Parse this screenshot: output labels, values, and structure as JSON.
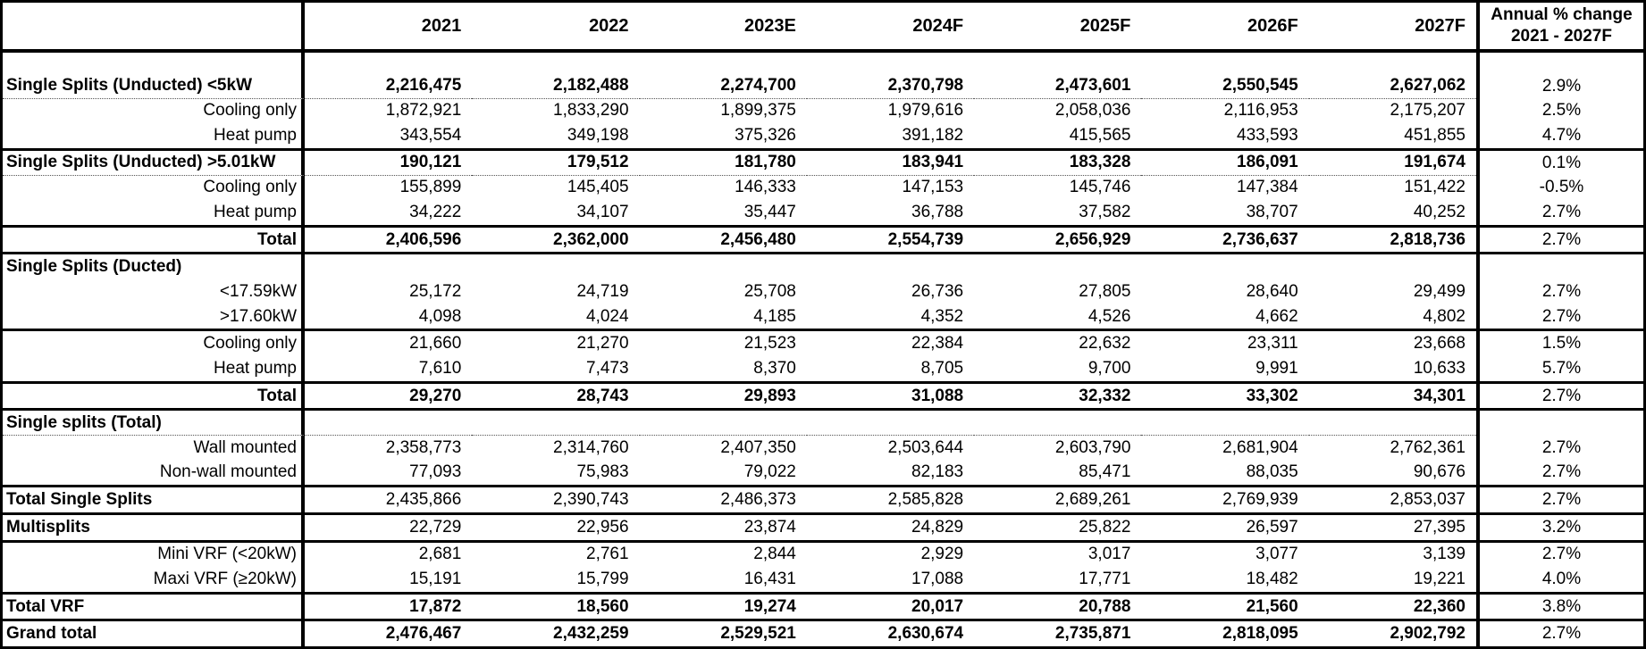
{
  "colors": {
    "background": "#ffffff",
    "text": "#000000",
    "border": "#000000",
    "dotted_line": "#555555"
  },
  "chart_data": {
    "type": "table",
    "title": "",
    "columns": {
      "corner": "",
      "years": [
        "2021",
        "2022",
        "2023E",
        "2024F",
        "2025F",
        "2026F",
        "2027F"
      ],
      "change_header_line1": "Annual % change",
      "change_header_line2": "2021 - 2027F"
    },
    "rows": [
      {
        "label": "",
        "label_align": "left",
        "label_bold": false,
        "values_bold": false,
        "spacer": true,
        "values": [
          "",
          "",
          "",
          "",
          "",
          "",
          ""
        ],
        "change": "",
        "border": "none"
      },
      {
        "label": "Single Splits (Unducted) <5kW",
        "label_align": "left",
        "label_bold": true,
        "values_bold": true,
        "values": [
          "2,216,475",
          "2,182,488",
          "2,274,700",
          "2,370,798",
          "2,473,601",
          "2,550,545",
          "2,627,062"
        ],
        "change": "2.9%",
        "border": "dotted"
      },
      {
        "label": "Cooling only",
        "label_align": "right",
        "label_bold": false,
        "values_bold": false,
        "values": [
          "1,872,921",
          "1,833,290",
          "1,899,375",
          "1,979,616",
          "2,058,036",
          "2,116,953",
          "2,175,207"
        ],
        "change": "2.5%",
        "border": "none"
      },
      {
        "label": "Heat pump",
        "label_align": "right",
        "label_bold": false,
        "values_bold": false,
        "values": [
          "343,554",
          "349,198",
          "375,326",
          "391,182",
          "415,565",
          "433,593",
          "451,855"
        ],
        "change": "4.7%",
        "border": "thick"
      },
      {
        "label": "Single Splits (Unducted) >5.01kW",
        "label_align": "left",
        "label_bold": true,
        "values_bold": true,
        "values": [
          "190,121",
          "179,512",
          "181,780",
          "183,941",
          "183,328",
          "186,091",
          "191,674"
        ],
        "change": "0.1%",
        "border": "dotted"
      },
      {
        "label": "Cooling only",
        "label_align": "right",
        "label_bold": false,
        "values_bold": false,
        "values": [
          "155,899",
          "145,405",
          "146,333",
          "147,153",
          "145,746",
          "147,384",
          "151,422"
        ],
        "change": "-0.5%",
        "border": "none"
      },
      {
        "label": "Heat pump",
        "label_align": "right",
        "label_bold": false,
        "values_bold": false,
        "values": [
          "34,222",
          "34,107",
          "35,447",
          "36,788",
          "37,582",
          "38,707",
          "40,252"
        ],
        "change": "2.7%",
        "border": "thick"
      },
      {
        "label": "Total",
        "label_align": "right",
        "label_bold": true,
        "values_bold": true,
        "values": [
          "2,406,596",
          "2,362,000",
          "2,456,480",
          "2,554,739",
          "2,656,929",
          "2,736,637",
          "2,818,736"
        ],
        "change": "2.7%",
        "border": "thick"
      },
      {
        "label": "Single Splits (Ducted)",
        "label_align": "left",
        "label_bold": true,
        "values_bold": false,
        "values": [
          "",
          "",
          "",
          "",
          "",
          "",
          ""
        ],
        "change": "",
        "border": "none"
      },
      {
        "label": "<17.59kW",
        "label_align": "right",
        "label_bold": false,
        "values_bold": false,
        "values": [
          "25,172",
          "24,719",
          "25,708",
          "26,736",
          "27,805",
          "28,640",
          "29,499"
        ],
        "change": "2.7%",
        "border": "none"
      },
      {
        "label": ">17.60kW",
        "label_align": "right",
        "label_bold": false,
        "values_bold": false,
        "values": [
          "4,098",
          "4,024",
          "4,185",
          "4,352",
          "4,526",
          "4,662",
          "4,802"
        ],
        "change": "2.7%",
        "border": "thick"
      },
      {
        "label": "Cooling only",
        "label_align": "right",
        "label_bold": false,
        "values_bold": false,
        "values": [
          "21,660",
          "21,270",
          "21,523",
          "22,384",
          "22,632",
          "23,311",
          "23,668"
        ],
        "change": "1.5%",
        "border": "none"
      },
      {
        "label": "Heat pump",
        "label_align": "right",
        "label_bold": false,
        "values_bold": false,
        "values": [
          "7,610",
          "7,473",
          "8,370",
          "8,705",
          "9,700",
          "9,991",
          "10,633"
        ],
        "change": "5.7%",
        "border": "thick"
      },
      {
        "label": "Total",
        "label_align": "right",
        "label_bold": true,
        "values_bold": true,
        "values": [
          "29,270",
          "28,743",
          "29,893",
          "31,088",
          "32,332",
          "33,302",
          "34,301"
        ],
        "change": "2.7%",
        "border": "thick"
      },
      {
        "label": "Single splits (Total)",
        "label_align": "left",
        "label_bold": true,
        "values_bold": false,
        "values": [
          "",
          "",
          "",
          "",
          "",
          "",
          ""
        ],
        "change": "",
        "border": "dotted"
      },
      {
        "label": "Wall mounted",
        "label_align": "right",
        "label_bold": false,
        "values_bold": false,
        "values": [
          "2,358,773",
          "2,314,760",
          "2,407,350",
          "2,503,644",
          "2,603,790",
          "2,681,904",
          "2,762,361"
        ],
        "change": "2.7%",
        "border": "none"
      },
      {
        "label": "Non-wall mounted",
        "label_align": "right",
        "label_bold": false,
        "values_bold": false,
        "values": [
          "77,093",
          "75,983",
          "79,022",
          "82,183",
          "85,471",
          "88,035",
          "90,676"
        ],
        "change": "2.7%",
        "border": "thick"
      },
      {
        "label": "Total Single Splits",
        "label_align": "left",
        "label_bold": true,
        "values_bold": false,
        "values": [
          "2,435,866",
          "2,390,743",
          "2,486,373",
          "2,585,828",
          "2,689,261",
          "2,769,939",
          "2,853,037"
        ],
        "change": "2.7%",
        "border": "thick"
      },
      {
        "label": "Multisplits",
        "label_align": "left",
        "label_bold": true,
        "values_bold": false,
        "values": [
          "22,729",
          "22,956",
          "23,874",
          "24,829",
          "25,822",
          "26,597",
          "27,395"
        ],
        "change": "3.2%",
        "border": "thick"
      },
      {
        "label": "Mini VRF (<20kW)",
        "label_align": "right",
        "label_bold": false,
        "values_bold": false,
        "values": [
          "2,681",
          "2,761",
          "2,844",
          "2,929",
          "3,017",
          "3,077",
          "3,139"
        ],
        "change": "2.7%",
        "border": "none"
      },
      {
        "label": "Maxi VRF (≥20kW)",
        "label_align": "right",
        "label_bold": false,
        "values_bold": false,
        "values": [
          "15,191",
          "15,799",
          "16,431",
          "17,088",
          "17,771",
          "18,482",
          "19,221"
        ],
        "change": "4.0%",
        "border": "thick"
      },
      {
        "label": "Total VRF",
        "label_align": "left",
        "label_bold": true,
        "values_bold": true,
        "values": [
          "17,872",
          "18,560",
          "19,274",
          "20,017",
          "20,788",
          "21,560",
          "22,360"
        ],
        "change": "3.8%",
        "border": "thick"
      },
      {
        "label": "Grand total",
        "label_align": "left",
        "label_bold": true,
        "values_bold": true,
        "values": [
          "2,476,467",
          "2,432,259",
          "2,529,521",
          "2,630,674",
          "2,735,871",
          "2,818,095",
          "2,902,792"
        ],
        "change": "2.7%",
        "border": "none"
      }
    ]
  }
}
